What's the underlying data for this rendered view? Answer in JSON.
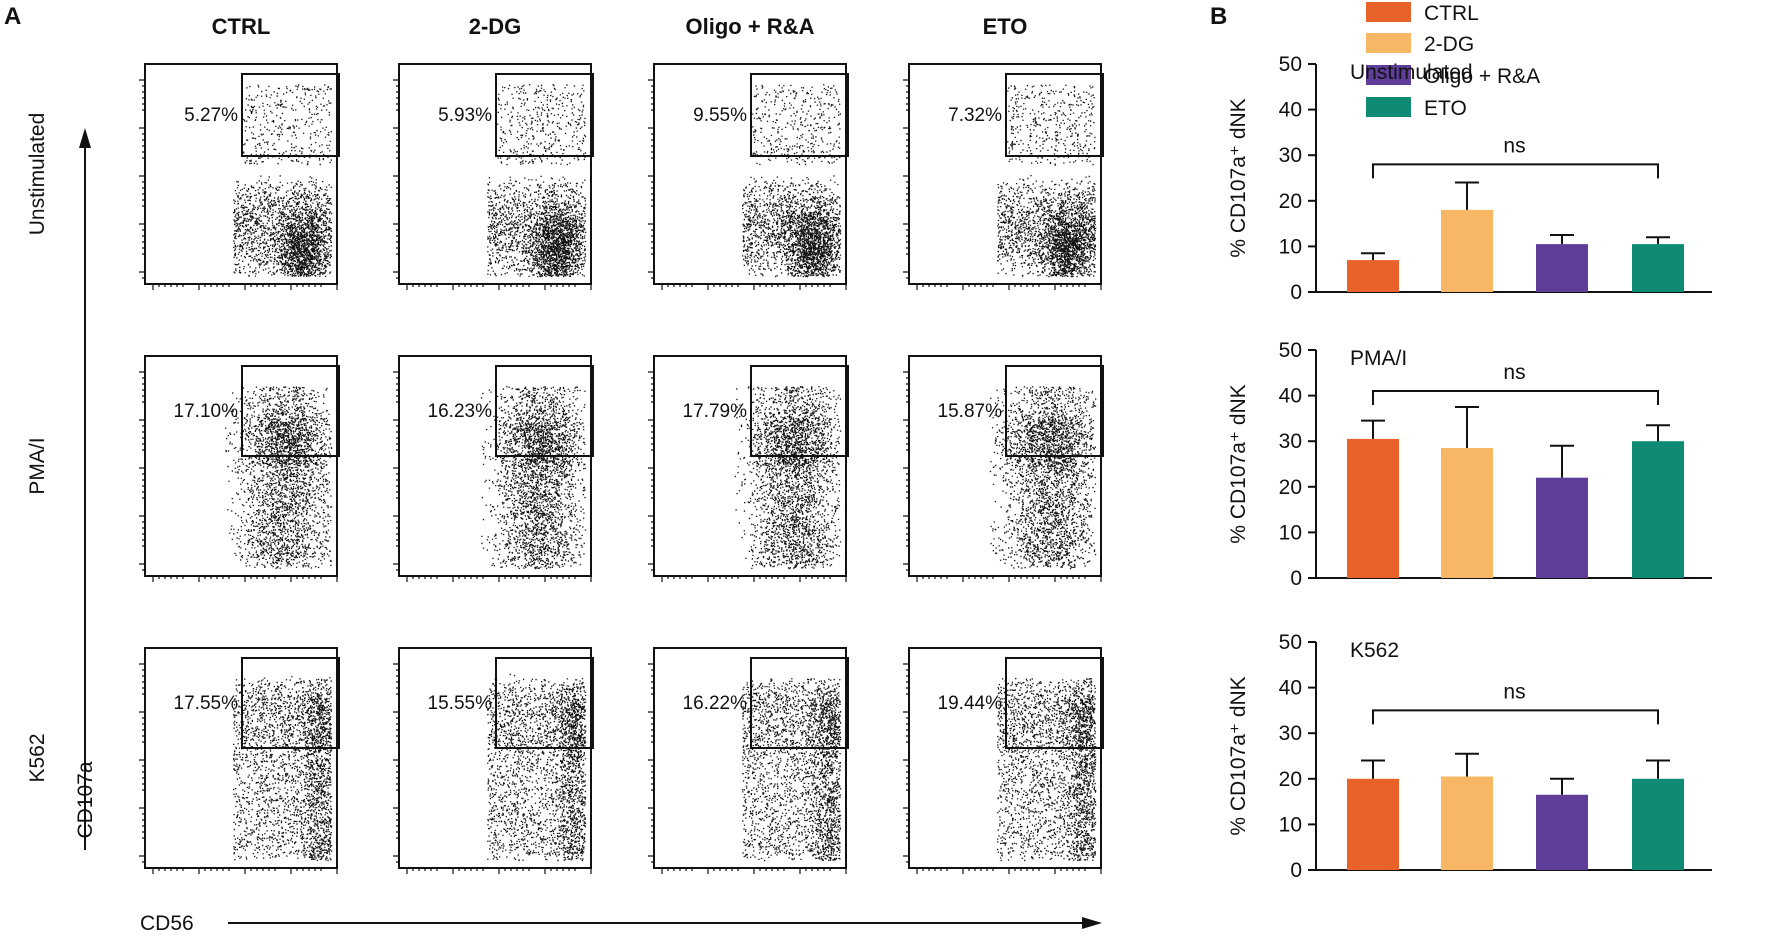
{
  "panel_a": {
    "label": "A",
    "columns": [
      "CTRL",
      "2-DG",
      "Oligo + R&A",
      "ETO"
    ],
    "rows": [
      "Unstimulated",
      "PMA/I",
      "K562"
    ],
    "gate_percentages": [
      [
        "5.27%",
        "5.93%",
        "9.55%",
        "7.32%"
      ],
      [
        "17.10%",
        "16.23%",
        "17.79%",
        "15.87%"
      ],
      [
        "17.55%",
        "15.55%",
        "16.22%",
        "19.44%"
      ]
    ],
    "y_axis_label": "CD107a",
    "x_axis_label": "CD56"
  },
  "panel_b": {
    "label": "B",
    "legend": [
      {
        "name": "CTRL",
        "color": "#E8622A"
      },
      {
        "name": "2-DG",
        "color": "#F8B765"
      },
      {
        "name": "Oligo + R&A",
        "color": "#5F3E99"
      },
      {
        "name": "ETO",
        "color": "#0F8A73"
      }
    ],
    "significance": "ns"
  },
  "chart_data": [
    {
      "type": "bar",
      "title": "Unstimulated",
      "categories": [
        "CTRL",
        "2-DG",
        "Oligo + R&A",
        "ETO"
      ],
      "values": [
        7,
        18,
        10.5,
        10.5
      ],
      "errors": [
        1.5,
        6,
        2,
        1.5
      ],
      "ylabel": "% CD107a⁺ dNK",
      "ylim": [
        0,
        50
      ],
      "yticks": [
        0,
        10,
        20,
        30,
        40,
        50
      ],
      "annotation": "ns"
    },
    {
      "type": "bar",
      "title": "PMA/I",
      "categories": [
        "CTRL",
        "2-DG",
        "Oligo + R&A",
        "ETO"
      ],
      "values": [
        30.5,
        28.5,
        22,
        30
      ],
      "errors": [
        4,
        9,
        7,
        3.5
      ],
      "ylabel": "% CD107a⁺ dNK",
      "ylim": [
        0,
        50
      ],
      "yticks": [
        0,
        10,
        20,
        30,
        40,
        50
      ],
      "annotation": "ns"
    },
    {
      "type": "bar",
      "title": "K562",
      "categories": [
        "CTRL",
        "2-DG",
        "Oligo + R&A",
        "ETO"
      ],
      "values": [
        20,
        20.5,
        16.5,
        20
      ],
      "errors": [
        4,
        5,
        3.5,
        4
      ],
      "ylabel": "% CD107a⁺ dNK",
      "ylim": [
        0,
        50
      ],
      "yticks": [
        0,
        10,
        20,
        30,
        40,
        50
      ],
      "annotation": "ns"
    }
  ]
}
